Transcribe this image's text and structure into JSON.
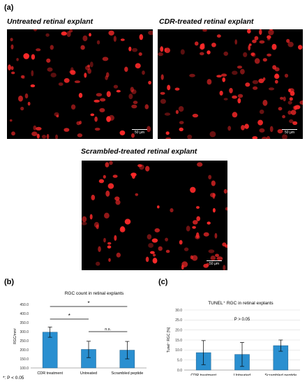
{
  "figure": {
    "panel_a_label": "(a)",
    "panel_b_label": "(b)",
    "panel_c_label": "(c)",
    "images": [
      {
        "title": "Untreated retinal explant",
        "scale_bar": "50 µm"
      },
      {
        "title": "CDR-treated retinal explant",
        "scale_bar": "50 µm"
      },
      {
        "title": "Scrambled-treated retinal explant",
        "scale_bar": "50 µm"
      }
    ],
    "footnote": "*: P < 0.05",
    "colors": {
      "bar": "#2a8fd0",
      "cell": "#ff2a2a",
      "background": "#000000"
    }
  },
  "chart_data": [
    {
      "type": "bar",
      "title": "RGC count in retinal explants",
      "ylabel": "RGC/mm²",
      "ylim": [
        100,
        450
      ],
      "yticks": [
        "450.0",
        "400.0",
        "350.0",
        "300.0",
        "250.0",
        "200.0",
        "150.0",
        "100.0"
      ],
      "categories": [
        "CDR treatment",
        "Untreated",
        "Scrambled peptide"
      ],
      "values": [
        297,
        202,
        198
      ],
      "errors": [
        28,
        45,
        48
      ],
      "significance": [
        {
          "from": 0,
          "to": 2,
          "label": "*"
        },
        {
          "from": 0,
          "to": 1,
          "label": "*"
        },
        {
          "from": 1,
          "to": 2,
          "label": "n.s."
        }
      ],
      "grid": false
    },
    {
      "type": "bar",
      "title": "TUNEL⁺ RGC in retinal explants",
      "ylabel": "Tunel⁺ RGC [%]",
      "ylim": [
        0,
        30
      ],
      "yticks": [
        "30.0",
        "25.0",
        "20.0",
        "15.0",
        "10.0",
        "5.0",
        "0.0"
      ],
      "categories": [
        "CDR treatment",
        "Untreated",
        "Scrambled peptide"
      ],
      "values": [
        8.7,
        7.8,
        12.2
      ],
      "errors": [
        6.0,
        6.0,
        2.8
      ],
      "annotation": "P > 0.05",
      "grid": true
    }
  ]
}
